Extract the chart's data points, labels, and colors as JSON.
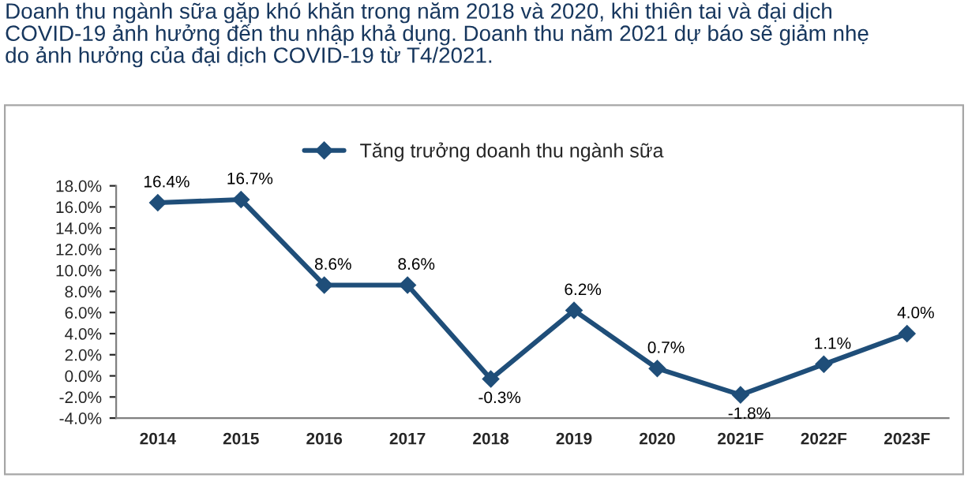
{
  "chart_data": {
    "type": "line",
    "title": "Doanh thu ngành sữa gặp khó khăn trong năm 2018 và 2020, khi thiên tai và đại dịch\nCOVID-19 ảnh hưởng đến thu nhập khả dụng. Doanh thu năm 2021 dự báo sẽ giảm nhẹ\ndo ảnh hưởng của đại dịch COVID-19 từ T4/2021.",
    "categories": [
      "2014",
      "2015",
      "2016",
      "2017",
      "2018",
      "2019",
      "2020",
      "2021F",
      "2022F",
      "2023F"
    ],
    "series": [
      {
        "name": "Tăng trưởng doanh thu ngành sữa",
        "color": "#1f4e79",
        "values": [
          16.4,
          16.7,
          8.6,
          8.6,
          -0.3,
          6.2,
          0.7,
          -1.8,
          1.1,
          4.0
        ],
        "value_labels": [
          "16.4%",
          "16.7%",
          "8.6%",
          "8.6%",
          "-0.3%",
          "6.2%",
          "0.7%",
          "-1.8%",
          "1.1%",
          "4.0%"
        ]
      }
    ],
    "ylim": [
      -4,
      18
    ],
    "yticks": [
      {
        "value": -4,
        "label": "-4.0%"
      },
      {
        "value": -2,
        "label": "-2.0%"
      },
      {
        "value": 0,
        "label": "0.0%"
      },
      {
        "value": 2,
        "label": "2.0%"
      },
      {
        "value": 4,
        "label": "4.0%"
      },
      {
        "value": 6,
        "label": "6.0%"
      },
      {
        "value": 8,
        "label": "8.0%"
      },
      {
        "value": 10,
        "label": "10.0%"
      },
      {
        "value": 12,
        "label": "12.0%"
      },
      {
        "value": 14,
        "label": "14.0%"
      },
      {
        "value": 16,
        "label": "16.0%"
      },
      {
        "value": 18,
        "label": "18.0%"
      }
    ],
    "grid": false,
    "legend": "top",
    "marker": "diamond",
    "line_style": "solid"
  }
}
